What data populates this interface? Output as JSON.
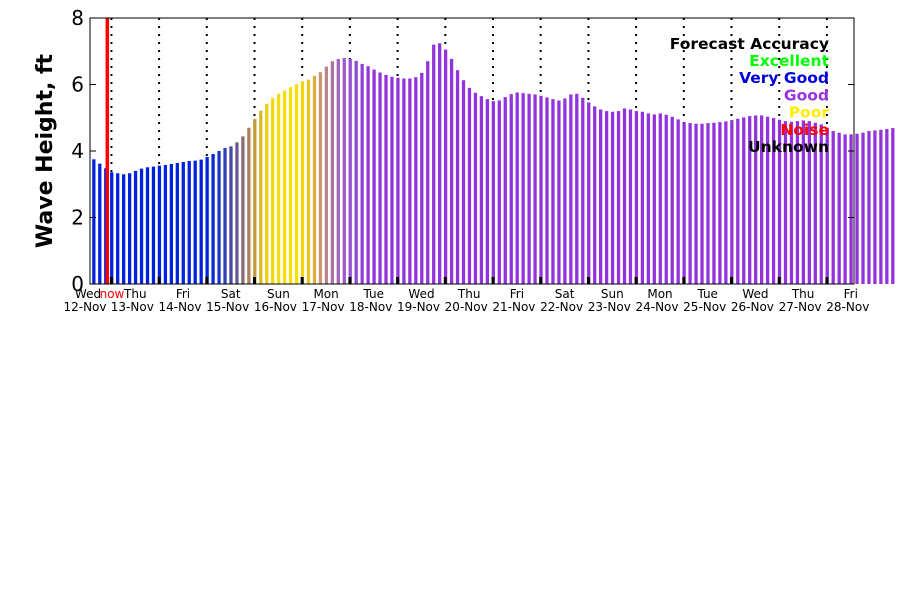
{
  "chart_data": {
    "type": "bar",
    "title": "",
    "xlabel": "",
    "ylabel": "Wave Height, ft",
    "ylim": [
      0,
      8
    ],
    "yticks": [
      0,
      2,
      4,
      6,
      8
    ],
    "grid": "vertical dotted at day boundaries",
    "x_ticks": [
      {
        "day": "Wed",
        "date": "12-Nov"
      },
      {
        "day": "Thu",
        "date": "13-Nov"
      },
      {
        "day": "Fri",
        "date": "14-Nov"
      },
      {
        "day": "Sat",
        "date": "15-Nov"
      },
      {
        "day": "Sun",
        "date": "16-Nov"
      },
      {
        "day": "Mon",
        "date": "17-Nov"
      },
      {
        "day": "Tue",
        "date": "18-Nov"
      },
      {
        "day": "Wed",
        "date": "19-Nov"
      },
      {
        "day": "Thu",
        "date": "20-Nov"
      },
      {
        "day": "Fri",
        "date": "21-Nov"
      },
      {
        "day": "Sat",
        "date": "22-Nov"
      },
      {
        "day": "Sun",
        "date": "23-Nov"
      },
      {
        "day": "Mon",
        "date": "24-Nov"
      },
      {
        "day": "Tue",
        "date": "25-Nov"
      },
      {
        "day": "Wed",
        "date": "26-Nov"
      },
      {
        "day": "Thu",
        "date": "27-Nov"
      },
      {
        "day": "Fri",
        "date": "28-Nov"
      }
    ],
    "now_marker": {
      "label": "now",
      "color": "#ff0000",
      "day_index": 0.33
    },
    "legend": {
      "title": "Forecast Accuracy",
      "placement": "top-right",
      "items": [
        {
          "label": "Excellent",
          "color": "#00ff00"
        },
        {
          "label": "Very Good",
          "color": "#0000dd"
        },
        {
          "label": "Good",
          "color": "#9933dd"
        },
        {
          "label": "Poor",
          "color": "#ffee00"
        },
        {
          "label": "Noise",
          "color": "#ff0000"
        },
        {
          "label": "Unknown",
          "color": "#000000"
        }
      ]
    },
    "series": [
      {
        "step_hours": 3,
        "start_day_index": 0,
        "values": [
          3.75,
          3.62,
          3.48,
          3.36,
          3.33,
          3.3,
          3.33,
          3.4,
          3.47,
          3.51,
          3.53,
          3.56,
          3.58,
          3.61,
          3.64,
          3.67,
          3.7,
          3.71,
          3.74,
          3.82,
          3.91,
          4.0,
          4.09,
          4.14,
          4.26,
          4.44,
          4.7,
          4.96,
          5.21,
          5.42,
          5.59,
          5.72,
          5.82,
          5.92,
          6.01,
          6.1,
          6.15,
          6.26,
          6.37,
          6.54,
          6.7,
          6.77,
          6.8,
          6.77,
          6.71,
          6.62,
          6.55,
          6.45,
          6.36,
          6.29,
          6.23,
          6.2,
          6.18,
          6.18,
          6.22,
          6.35,
          6.7,
          7.2,
          7.24,
          7.05,
          6.77,
          6.43,
          6.13,
          5.9,
          5.75,
          5.65,
          5.56,
          5.5,
          5.52,
          5.62,
          5.71,
          5.76,
          5.74,
          5.72,
          5.7,
          5.66,
          5.61,
          5.56,
          5.52,
          5.58,
          5.7,
          5.72,
          5.6,
          5.46,
          5.34,
          5.25,
          5.2,
          5.18,
          5.2,
          5.28,
          5.25,
          5.2,
          5.18,
          5.13,
          5.1,
          5.13,
          5.09,
          5.03,
          4.95,
          4.86,
          4.84,
          4.82,
          4.82,
          4.84,
          4.85,
          4.87,
          4.89,
          4.93,
          4.97,
          5.01,
          5.05,
          5.07,
          5.07,
          5.03,
          4.99,
          4.94,
          4.9,
          4.88,
          4.9,
          4.92,
          4.9,
          4.85,
          4.8,
          4.7,
          4.6,
          4.55,
          4.5,
          4.5,
          4.52,
          4.55,
          4.6,
          4.62,
          4.64,
          4.66,
          4.69
        ],
        "colors": [
          "#0022dd",
          "#0022dd",
          "#0022dd",
          "#0022dd",
          "#0022dd",
          "#0022dd",
          "#0022dd",
          "#0022dd",
          "#0022dd",
          "#0022dd",
          "#0022dd",
          "#0022dd",
          "#0022dd",
          "#0022dd",
          "#0022dd",
          "#0022dd",
          "#0022dd",
          "#0022dd",
          "#0022dd",
          "#0022dd",
          "#0a2ad8",
          "#1c35cc",
          "#2e40bb",
          "#4a4aa6",
          "#6a5a8e",
          "#8a6a75",
          "#a8805a",
          "#c49a3c",
          "#dcb81e",
          "#eccd10",
          "#f3d808",
          "#f6dc05",
          "#f7dd04",
          "#f8de03",
          "#f8de03",
          "#f5d60a",
          "#eac522",
          "#daae45",
          "#c8986a",
          "#b9858a",
          "#ac74a6",
          "#a265b8",
          "#9b5bc8",
          "#9650d2",
          "#9448d6",
          "#9340d9",
          "#9238da",
          "#9233dd",
          "#9233dd",
          "#9233dd",
          "#9233dd",
          "#9233dd",
          "#9233dd",
          "#9233dd",
          "#9233dd",
          "#9233dd",
          "#9233dd",
          "#9233dd",
          "#9233dd",
          "#9233dd",
          "#9233dd",
          "#9233dd",
          "#9233dd",
          "#9233dd",
          "#9233dd",
          "#9233dd",
          "#9233dd",
          "#9233dd",
          "#9233dd",
          "#9233dd",
          "#9233dd",
          "#9233dd",
          "#9233dd",
          "#9233dd",
          "#9233dd",
          "#9233dd",
          "#9233dd",
          "#9233dd",
          "#9233dd",
          "#9233dd",
          "#9233dd",
          "#9233dd",
          "#9233dd",
          "#9233dd",
          "#9233dd",
          "#9233dd",
          "#9233dd",
          "#9233dd",
          "#9233dd",
          "#9233dd",
          "#9233dd",
          "#9233dd",
          "#9233dd",
          "#9233dd",
          "#9233dd",
          "#9233dd",
          "#9233dd",
          "#9233dd",
          "#9233dd",
          "#9233dd",
          "#9233dd",
          "#9233dd",
          "#9233dd",
          "#9233dd",
          "#9233dd",
          "#9233dd",
          "#9233dd",
          "#9233dd",
          "#9233dd",
          "#9233dd",
          "#9233dd",
          "#9233dd",
          "#9233dd",
          "#9233dd",
          "#9233dd",
          "#9233dd",
          "#9233dd",
          "#9233dd",
          "#9233dd",
          "#9233dd",
          "#9233dd",
          "#9233dd",
          "#9233dd",
          "#9233dd",
          "#9233dd",
          "#9233dd",
          "#9233dd",
          "#9233dd",
          "#9233dd",
          "#9233dd",
          "#9233dd",
          "#9233dd",
          "#9233dd",
          "#9233dd",
          "#9233dd"
        ]
      }
    ]
  }
}
